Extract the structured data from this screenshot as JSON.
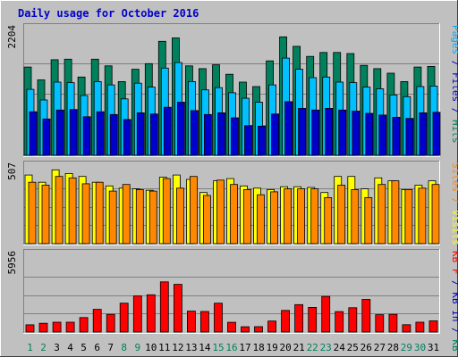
{
  "chart_data": [
    {
      "type": "bar",
      "title": "Daily usage for October 2016",
      "ylabel_parts": [
        {
          "text": "Pages",
          "color": "#00aaff"
        },
        {
          "text": " / ",
          "color": "#0000cc"
        },
        {
          "text": "Files",
          "color": "#0000cc"
        },
        {
          "text": " / ",
          "color": "#0000cc"
        },
        {
          "text": "Hits",
          "color": "#00805c"
        }
      ],
      "ymax_label": "2204",
      "ylim": [
        0,
        2204
      ],
      "x": [
        "1",
        "2",
        "3",
        "4",
        "5",
        "6",
        "7",
        "8",
        "9",
        "10",
        "11",
        "12",
        "13",
        "14",
        "15",
        "16",
        "17",
        "18",
        "19",
        "20",
        "21",
        "22",
        "23",
        "24",
        "25",
        "26",
        "27",
        "28",
        "29",
        "30",
        "31"
      ],
      "weekend_days": [
        "1",
        "2",
        "8",
        "9",
        "15",
        "16",
        "22",
        "23",
        "29",
        "30"
      ],
      "series": [
        {
          "name": "Hits",
          "color": "#00805c",
          "values": [
            1580,
            1350,
            1710,
            1720,
            1400,
            1720,
            1600,
            1320,
            1540,
            1640,
            2040,
            2100,
            1600,
            1550,
            1620,
            1450,
            1310,
            1230,
            1690,
            2120,
            1950,
            1770,
            1840,
            1840,
            1820,
            1610,
            1550,
            1470,
            1320,
            1580,
            1590
          ]
        },
        {
          "name": "Files",
          "color": "#00c0ff",
          "values": [
            1180,
            990,
            1310,
            1300,
            1070,
            1320,
            1260,
            1010,
            1290,
            1220,
            1560,
            1660,
            1320,
            1170,
            1210,
            1120,
            1020,
            950,
            1260,
            1740,
            1540,
            1390,
            1400,
            1310,
            1300,
            1220,
            1190,
            1080,
            1050,
            1230,
            1240
          ]
        },
        {
          "name": "Pages",
          "color": "#0000cc",
          "values": [
            780,
            650,
            810,
            820,
            690,
            780,
            730,
            640,
            760,
            740,
            860,
            950,
            800,
            730,
            760,
            670,
            530,
            520,
            740,
            960,
            840,
            810,
            840,
            810,
            790,
            750,
            720,
            680,
            660,
            760,
            770
          ]
        }
      ]
    },
    {
      "type": "bar",
      "ylabel_parts": [
        {
          "text": "Sites",
          "color": "#ff8800"
        },
        {
          "text": " / ",
          "color": "#ff8800"
        },
        {
          "text": "Visits",
          "color": "#ffff00"
        }
      ],
      "ymax_label": "507",
      "ylim": [
        0,
        507
      ],
      "series": [
        {
          "name": "Visits",
          "color": "#ffff00",
          "values": [
            470,
            420,
            505,
            480,
            460,
            420,
            395,
            380,
            375,
            365,
            455,
            470,
            440,
            350,
            430,
            445,
            395,
            380,
            370,
            390,
            390,
            385,
            350,
            460,
            460,
            375,
            450,
            430,
            370,
            400,
            430
          ]
        },
        {
          "name": "Sites",
          "color": "#ff8800",
          "values": [
            420,
            400,
            460,
            450,
            410,
            420,
            360,
            405,
            370,
            360,
            445,
            380,
            460,
            330,
            435,
            405,
            370,
            335,
            355,
            375,
            375,
            375,
            315,
            400,
            370,
            315,
            405,
            430,
            370,
            380,
            405
          ]
        }
      ]
    },
    {
      "type": "bar",
      "ylabel_parts": [
        {
          "text": "KB F",
          "color": "#ff0000"
        },
        {
          "text": " / ",
          "color": "#0000cc"
        },
        {
          "text": "KB In",
          "color": "#0000cc"
        },
        {
          "text": " / ",
          "color": "#0000cc"
        },
        {
          "text": "KB Out",
          "color": "#00805c"
        }
      ],
      "ymax_label": "5956",
      "ylim": [
        0,
        5956
      ],
      "series": [
        {
          "name": "KB F",
          "color": "#ff0000",
          "values": [
            580,
            700,
            790,
            790,
            1160,
            1820,
            1420,
            2320,
            2900,
            2990,
            4030,
            3830,
            1680,
            1650,
            2320,
            780,
            420,
            430,
            880,
            1740,
            2200,
            1980,
            2860,
            1640,
            1950,
            2620,
            1390,
            1420,
            590,
            790,
            900
          ]
        }
      ]
    }
  ]
}
